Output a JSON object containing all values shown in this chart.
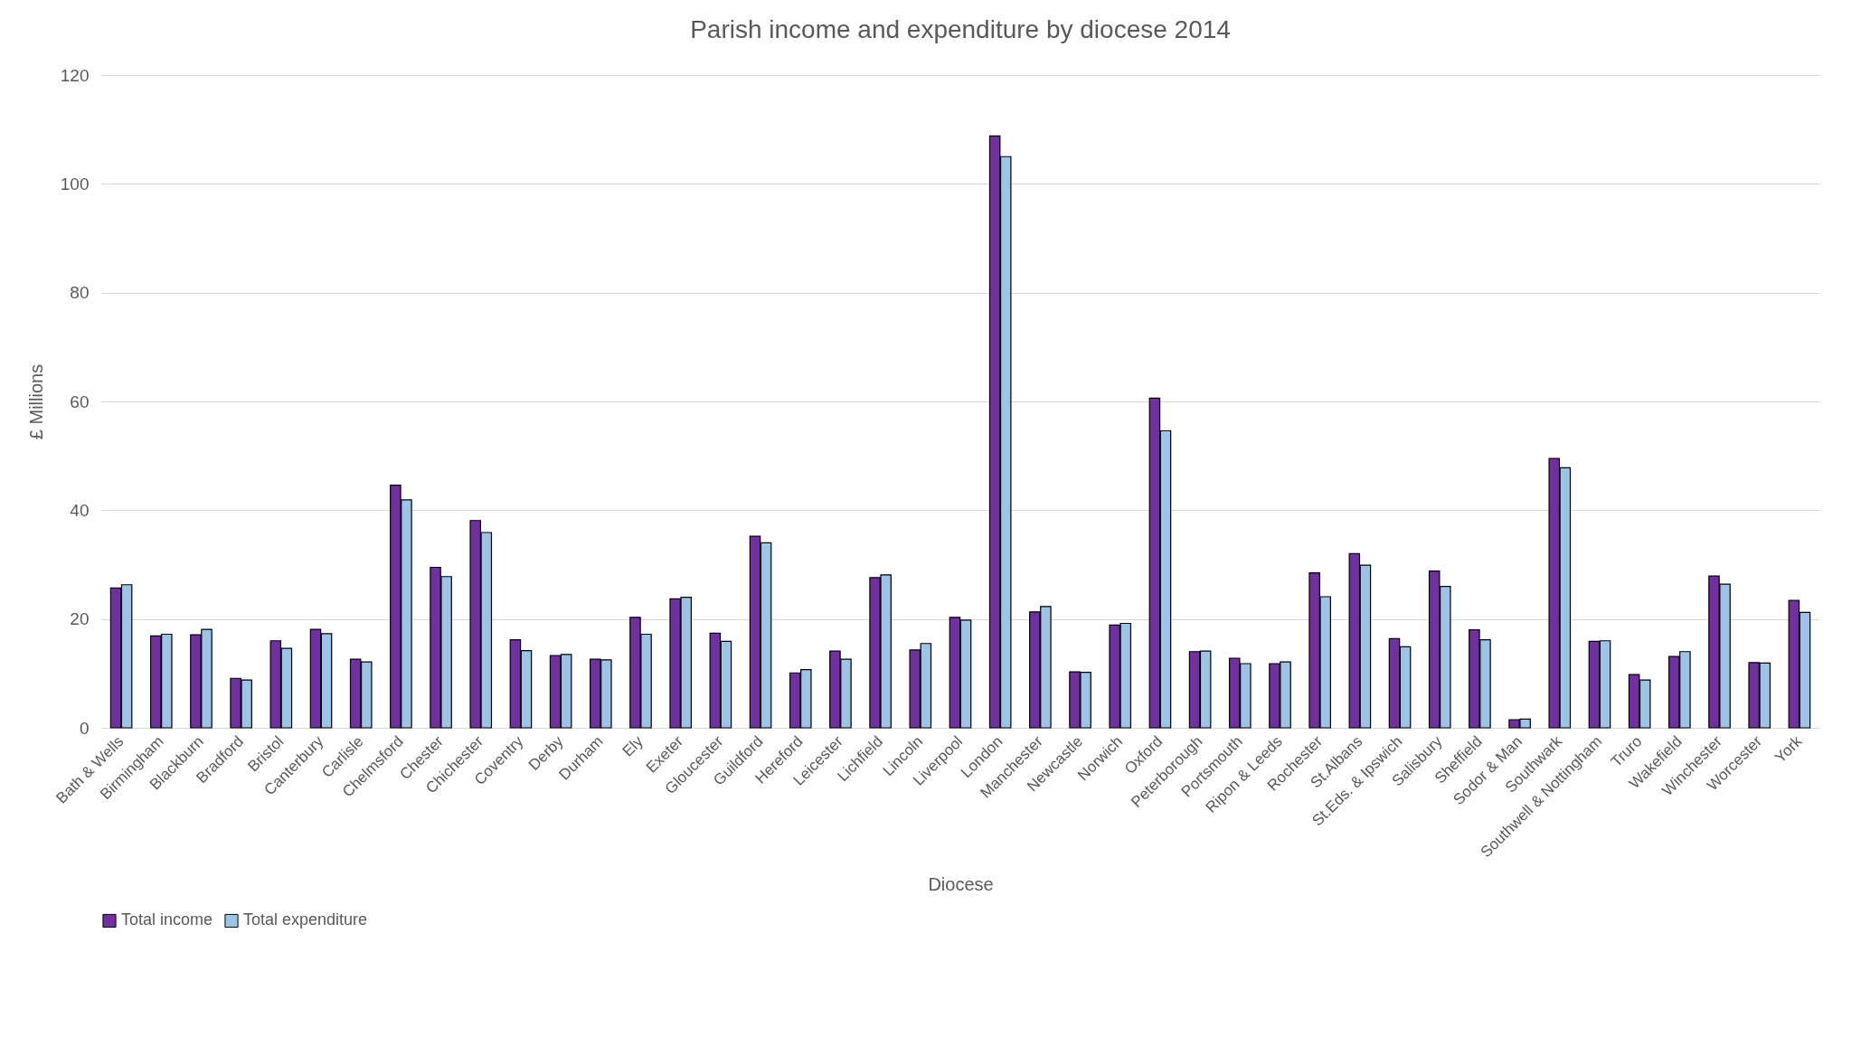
{
  "chart_data": {
    "type": "bar",
    "title": "Parish income and expenditure by diocese 2014",
    "xlabel": "Diocese",
    "ylabel": "£ Millions",
    "categories": [
      "Bath & Wells",
      "Birmingham",
      "Blackburn",
      "Bradford",
      "Bristol",
      "Canterbury",
      "Carlisle",
      "Chelmsford",
      "Chester",
      "Chichester",
      "Coventry",
      "Derby",
      "Durham",
      "Ely",
      "Exeter",
      "Gloucester",
      "Guildford",
      "Hereford",
      "Leicester",
      "Lichfield",
      "Lincoln",
      "Liverpool",
      "London",
      "Manchester",
      "Newcastle",
      "Norwich",
      "Oxford",
      "Peterborough",
      "Portsmouth",
      "Ripon & Leeds",
      "Rochester",
      "St.Albans",
      "St.Eds. & Ipswich",
      "Salisbury",
      "Sheffield",
      "Sodor & Man",
      "Southwark",
      "Southwell & Nottingham",
      "Truro",
      "Wakefield",
      "Winchester",
      "Worcester",
      "York"
    ],
    "series": [
      {
        "name": "Total income",
        "color": "#7030a0",
        "values": [
          25.7,
          16.9,
          17.1,
          9.1,
          16.0,
          18.1,
          12.6,
          44.6,
          29.5,
          38.1,
          16.2,
          13.3,
          12.6,
          20.3,
          23.7,
          17.4,
          35.2,
          10.1,
          14.1,
          27.6,
          14.3,
          20.3,
          108.8,
          21.3,
          10.3,
          18.9,
          60.6,
          14.0,
          12.8,
          11.8,
          28.5,
          32.0,
          16.4,
          28.8,
          18.0,
          1.5,
          49.5,
          15.9,
          9.8,
          13.1,
          27.9,
          12.0,
          23.4
        ]
      },
      {
        "name": "Total expenditure",
        "color": "#9dc3e6",
        "values": [
          26.3,
          17.2,
          18.1,
          8.8,
          14.6,
          17.3,
          12.1,
          41.9,
          27.8,
          35.9,
          14.2,
          13.5,
          12.5,
          17.2,
          24.0,
          15.9,
          34.0,
          10.7,
          12.6,
          28.1,
          15.5,
          19.8,
          105.0,
          22.3,
          10.2,
          19.2,
          54.6,
          14.1,
          11.8,
          12.1,
          24.1,
          29.9,
          14.9,
          26.0,
          16.2,
          1.6,
          47.8,
          16.0,
          8.8,
          14.0,
          26.4,
          11.9,
          21.2
        ]
      }
    ],
    "ylim": [
      0,
      120
    ],
    "yticks": [
      0,
      20,
      40,
      60,
      80,
      100,
      120
    ],
    "grid": "y",
    "legend": "bottom"
  }
}
